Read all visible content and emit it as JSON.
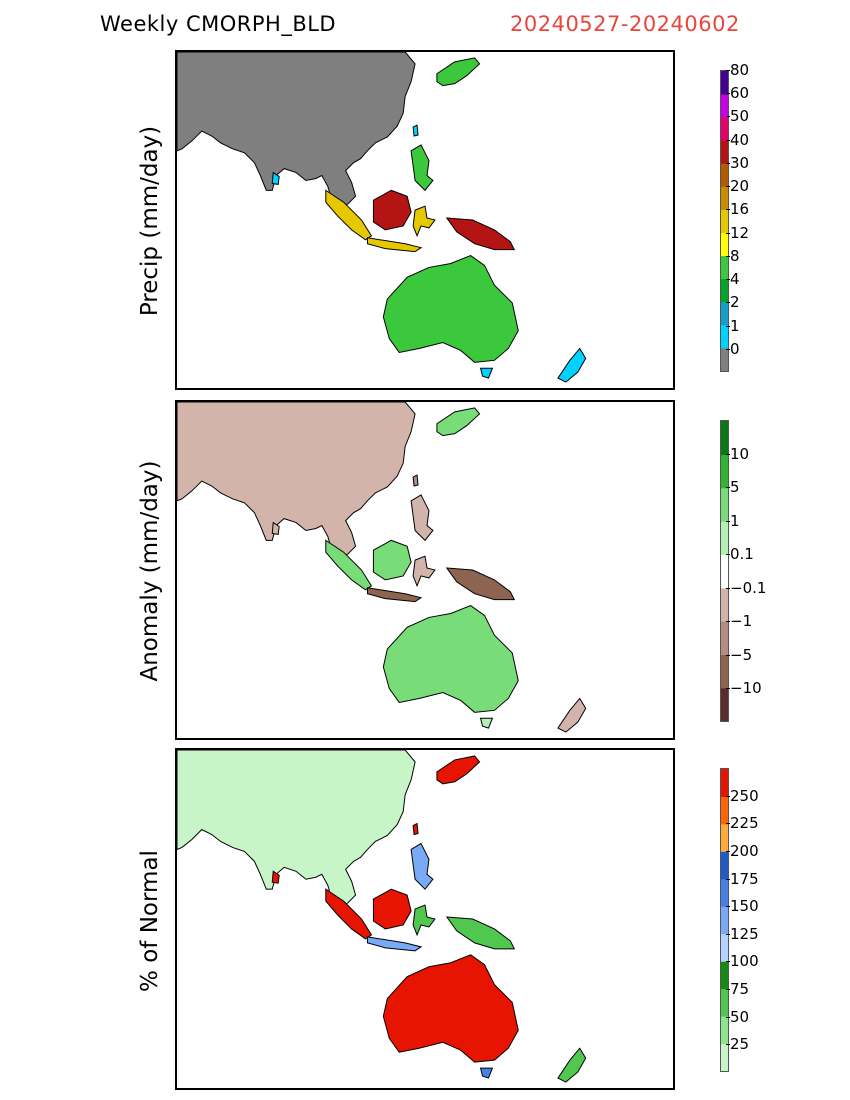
{
  "header": {
    "product": "Weekly CMORPH_BLD",
    "period": "20240527-20240602"
  },
  "panels": [
    {
      "ylabel": "Precip (mm/day)",
      "ocean_color": "#ffffff",
      "colorbar": {
        "colors": [
          "#7f7f7f",
          "#00d2ff",
          "#14a0c8",
          "#00a528",
          "#3cc83c",
          "#ffff00",
          "#e6c800",
          "#c88c00",
          "#b45a00",
          "#b41414",
          "#e6006e",
          "#c800e6",
          "#460096"
        ],
        "labels": [
          "0",
          "1",
          "2",
          "4",
          "8",
          "12",
          "16",
          "20",
          "30",
          "40",
          "50",
          "60",
          "80"
        ]
      }
    },
    {
      "ylabel": "Anomaly (mm/day)",
      "ocean_color": "#ffffff",
      "colorbar": {
        "colors": [
          "#5a2d2d",
          "#8c6450",
          "#b48c82",
          "#d2b4aa",
          "#ffffff",
          "#b4f0b4",
          "#78dc78",
          "#32b432",
          "#0a7814"
        ],
        "labels": [
          "−10",
          "−5",
          "−1",
          "−0.1",
          "0.1",
          "1",
          "5",
          "10"
        ]
      }
    },
    {
      "ylabel": "% of Normal",
      "ocean_color": "#ffffff",
      "colorbar": {
        "colors": [
          "#c8f5c8",
          "#8ce68c",
          "#50c850",
          "#148c14",
          "#b4d2ff",
          "#78aaf5",
          "#4682e6",
          "#1e5ac8",
          "#ffaa3c",
          "#ff6400",
          "#e61400"
        ],
        "labels": [
          "25",
          "50",
          "75",
          "100",
          "125",
          "150",
          "175",
          "200",
          "225",
          "250"
        ]
      }
    }
  ]
}
